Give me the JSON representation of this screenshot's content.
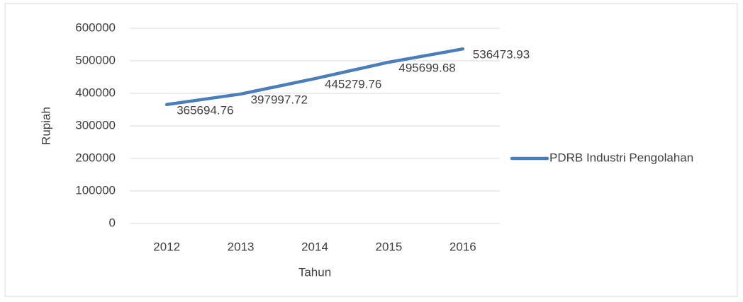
{
  "chart_data": {
    "type": "line",
    "x_label": "Tahun",
    "y_label": "Rupiah",
    "categories": [
      "2012",
      "2013",
      "2014",
      "2015",
      "2016"
    ],
    "series": [
      {
        "name": "PDRB Industri Pengolahan",
        "color": "#4a7ebb",
        "values": [
          365694.76,
          397997.72,
          445279.76,
          495699.68,
          536473.93
        ]
      }
    ],
    "ylim": [
      0,
      600000
    ],
    "yticks": [
      0,
      100000,
      200000,
      300000,
      400000,
      500000,
      600000
    ],
    "grid": true,
    "legend": "right"
  }
}
